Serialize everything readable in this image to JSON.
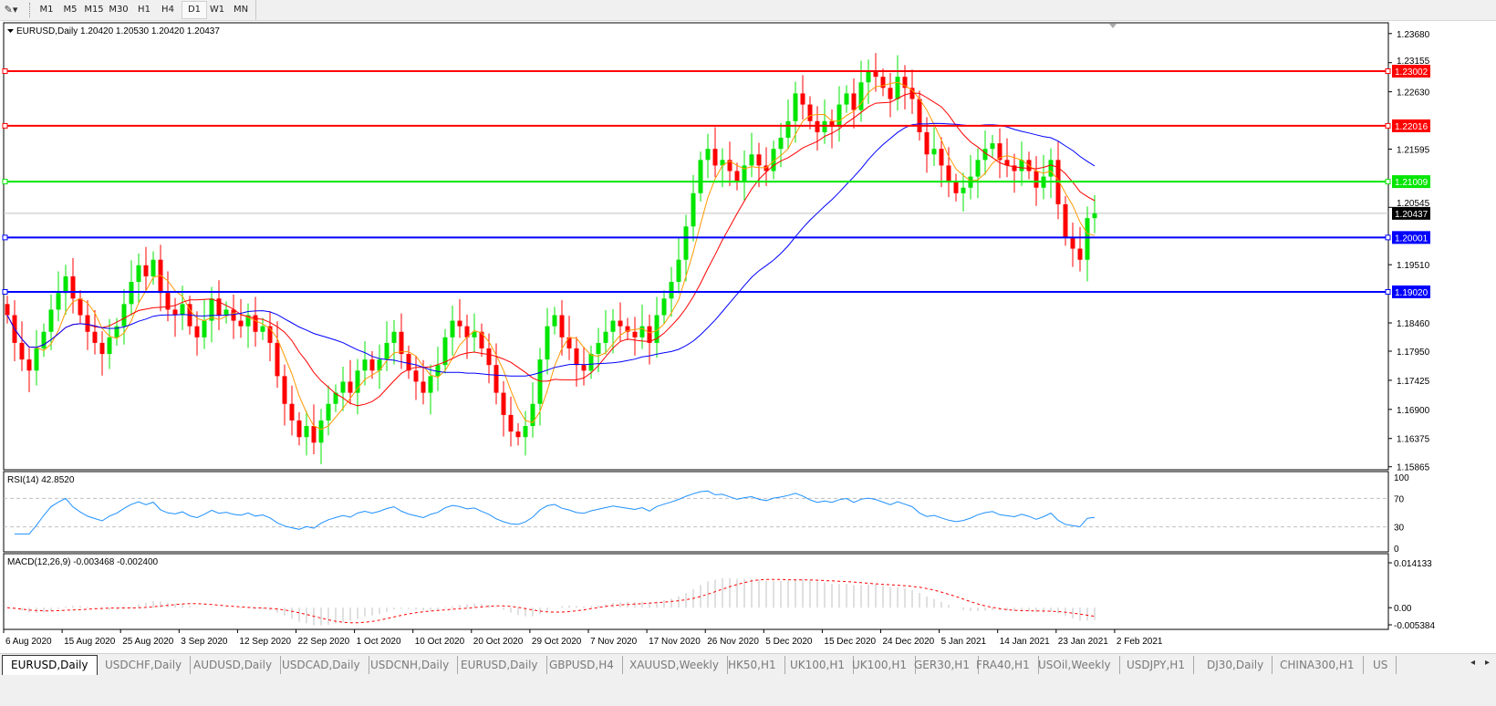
{
  "toolbar": {
    "tool_icon": "crosshair-draw-icon",
    "timeframes": [
      "M1",
      "M5",
      "M15",
      "M30",
      "H1",
      "H4",
      "D1",
      "W1",
      "MN"
    ],
    "active_timeframe": "D1"
  },
  "chart": {
    "header": "EURUSD,Daily  1.20420 1.20530 1.20420 1.20437",
    "price_ticks": [
      "1.23680",
      "1.23155",
      "1.22630",
      "1.21595",
      "1.20545",
      "1.19510",
      "1.18460",
      "1.17950",
      "1.17425",
      "1.16900",
      "1.16375",
      "1.15865"
    ],
    "price_tick_values": [
      1.2368,
      1.23155,
      1.2263,
      1.21595,
      1.20545,
      1.1951,
      1.1846,
      1.1795,
      1.17425,
      1.169,
      1.16375,
      1.15865
    ],
    "current_price": "1.20437",
    "horizontal_lines": [
      {
        "label": "1.23002",
        "price": 1.23002,
        "color": "#ff0000"
      },
      {
        "label": "1.22016",
        "price": 1.22016,
        "color": "#ff0000"
      },
      {
        "label": "1.21009",
        "price": 1.21009,
        "color": "#00e600"
      },
      {
        "label": "1.20001",
        "price": 1.20001,
        "color": "#0000ff"
      },
      {
        "label": "1.19020",
        "price": 1.1902,
        "color": "#0000ff"
      }
    ],
    "colors": {
      "bull": "#00e600",
      "bear": "#ff0000",
      "ma_fast": "#ff9900",
      "ma_mid": "#ff0000",
      "ma_slow": "#0000ff",
      "rsi": "#1e90ff",
      "macd_hist": "#c0c0c0",
      "macd_signal": "#ff0000"
    },
    "closes": [
      1.186,
      1.181,
      1.178,
      1.176,
      1.18,
      1.183,
      1.187,
      1.19,
      1.193,
      1.189,
      1.186,
      1.183,
      1.181,
      1.179,
      1.182,
      1.184,
      1.188,
      1.192,
      1.195,
      1.193,
      1.196,
      1.19,
      1.187,
      1.186,
      1.188,
      1.184,
      1.182,
      1.185,
      1.189,
      1.186,
      1.187,
      1.185,
      1.184,
      1.186,
      1.183,
      1.184,
      1.181,
      1.175,
      1.17,
      1.167,
      1.164,
      1.166,
      1.163,
      1.167,
      1.17,
      1.172,
      1.174,
      1.172,
      1.176,
      1.178,
      1.176,
      1.178,
      1.181,
      1.183,
      1.179,
      1.176,
      1.174,
      1.172,
      1.175,
      1.177,
      1.182,
      1.185,
      1.184,
      1.182,
      1.183,
      1.18,
      1.177,
      1.172,
      1.168,
      1.165,
      1.164,
      1.166,
      1.17,
      1.178,
      1.184,
      1.186,
      1.182,
      1.18,
      1.177,
      1.176,
      1.179,
      1.181,
      1.183,
      1.185,
      1.184,
      1.183,
      1.182,
      1.184,
      1.181,
      1.186,
      1.189,
      1.192,
      1.196,
      1.202,
      1.208,
      1.214,
      1.216,
      1.213,
      1.214,
      1.212,
      1.21,
      1.213,
      1.215,
      1.213,
      1.212,
      1.216,
      1.218,
      1.221,
      1.226,
      1.224,
      1.221,
      1.219,
      1.221,
      1.22,
      1.224,
      1.226,
      1.223,
      1.228,
      1.23,
      1.229,
      1.227,
      1.225,
      1.229,
      1.227,
      1.225,
      1.219,
      1.215,
      1.216,
      1.213,
      1.21,
      1.208,
      1.209,
      1.211,
      1.214,
      1.216,
      1.217,
      1.214,
      1.213,
      1.212,
      1.214,
      1.212,
      1.209,
      1.211,
      1.214,
      1.206,
      1.2,
      1.198,
      1.196,
      1.2035,
      1.20437
    ],
    "date_labels": [
      "6 Aug 2020",
      "15 Aug 2020",
      "25 Aug 2020",
      "3 Sep 2020",
      "12 Sep 2020",
      "22 Sep 2020",
      "1 Oct 2020",
      "10 Oct 2020",
      "20 Oct 2020",
      "29 Oct 2020",
      "7 Nov 2020",
      "17 Nov 2020",
      "26 Nov 2020",
      "5 Dec 2020",
      "15 Dec 2020",
      "24 Dec 2020",
      "5 Jan 2021",
      "14 Jan 2021",
      "23 Jan 2021",
      "2 Feb 2021"
    ]
  },
  "rsi": {
    "header": "RSI(14) 42.8520",
    "levels": [
      "100",
      "70",
      "30",
      "0"
    ]
  },
  "macd": {
    "header": "MACD(12,26,9) -0.003468 -0.002400",
    "ticks": [
      "0.014133",
      "0.00",
      "-0.005384"
    ]
  },
  "tabs": [
    "EURUSD,Daily",
    "USDCHF,Daily",
    "AUDUSD,Daily",
    "USDCAD,Daily",
    "USDCNH,Daily",
    "EURUSD,Daily",
    "GBPUSD,H4",
    "XAUUSD,Weekly",
    "HK50,H1",
    "UK100,H1",
    "UK100,H1",
    "GER30,H1",
    "FRA40,H1",
    "USOil,Weekly",
    "USDJPY,H1",
    "DJ30,Daily",
    "CHINA300,H1",
    "US"
  ],
  "active_tab": 0
}
